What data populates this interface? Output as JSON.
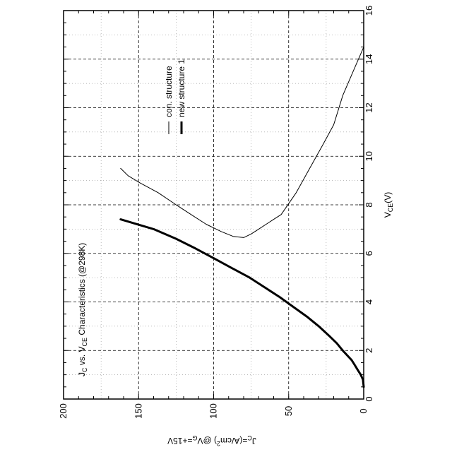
{
  "chart_data": {
    "type": "line",
    "rotated_ccw_90": true,
    "title": "Jc vs. VCE Characteristics (@298K)",
    "title_main": "J",
    "title_sub1": "C",
    "title_mid": " vs. V",
    "title_sub2": "CE",
    "title_tail": " Characteristics (@298K)",
    "xlabel": "VCE(V)",
    "xlabel_main": "V",
    "xlabel_sub": "CE",
    "xlabel_tail": "(V)",
    "ylabel": "Jc=(A/cm2)  @VG=+15V",
    "ylabel_j": "J",
    "ylabel_jsub": "C",
    "ylabel_mid": "=(A/cm",
    "ylabel_sup": "2",
    "ylabel_close": ")  @V",
    "ylabel_gsub": "G",
    "ylabel_tail": "=+15V",
    "xlim": [
      0,
      16
    ],
    "ylim": [
      0,
      200
    ],
    "x_ticks": [
      0,
      2,
      4,
      6,
      8,
      10,
      12,
      14,
      16
    ],
    "y_ticks": [
      0,
      50,
      100,
      150,
      200
    ],
    "grid": true,
    "legend_position": "top-right",
    "series": [
      {
        "name": "con. structure",
        "style": "thin",
        "x": [
          14.5,
          13.5,
          12.5,
          11.3,
          10.5,
          9.5,
          8.5,
          7.6,
          7.4,
          7.2,
          7.0,
          6.8,
          6.65,
          6.7,
          6.9,
          7.2,
          7.6,
          8.0,
          8.5,
          8.9,
          9.2,
          9.5
        ],
        "y": [
          0,
          7,
          14,
          20,
          27,
          36,
          45,
          55,
          60,
          65,
          70,
          75,
          80,
          87,
          95,
          105,
          115,
          125,
          137,
          149,
          157,
          162
        ]
      },
      {
        "name": "new structure 1",
        "style": "thick",
        "x": [
          0.5,
          0.8,
          1.0,
          1.2,
          1.4,
          1.6,
          1.8,
          2.0,
          2.3,
          2.6,
          3.0,
          3.4,
          3.8,
          4.2,
          4.6,
          5.0,
          5.4,
          5.8,
          6.2,
          6.6,
          7.0,
          7.4
        ],
        "y": [
          0,
          0.5,
          2,
          4,
          6,
          8,
          11,
          14,
          18,
          23,
          30,
          38,
          47,
          56,
          66,
          76,
          88,
          100,
          112,
          125,
          140,
          162
        ]
      }
    ]
  }
}
